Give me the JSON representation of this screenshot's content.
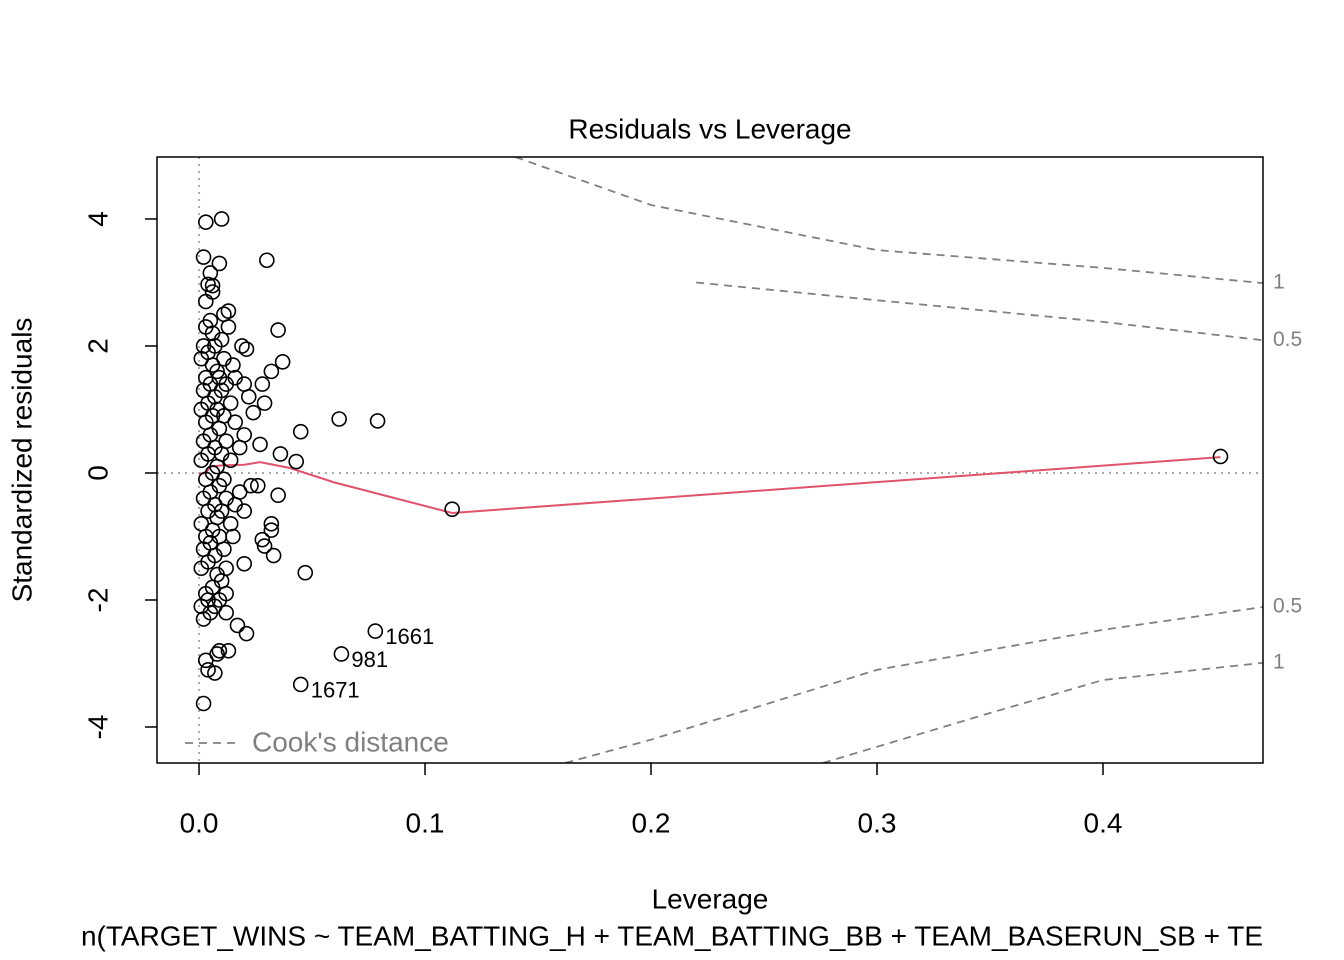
{
  "chart_data": {
    "type": "scatter",
    "title": "Residuals vs Leverage",
    "x_label": "Leverage",
    "y_label": "Standardized residuals",
    "subtitle": "n(TARGET_WINS ~ TEAM_BATTING_H + TEAM_BATTING_BB + TEAM_BASERUN_SB + TE",
    "xlim": [
      -0.0186,
      0.4708
    ],
    "ylim": [
      -4.567,
      4.976
    ],
    "xticks": [
      {
        "value": 0,
        "label": "0.0"
      },
      0.1,
      0.2,
      0.3,
      0.4
    ],
    "yticks": [
      -4,
      -2,
      0,
      2,
      4
    ],
    "series": [
      {
        "color": "#000000",
        "x": [
          0.01,
          0.003,
          0.03,
          0.002,
          0.009,
          0.005,
          0.004,
          0.006,
          0.006,
          0.035,
          0.037,
          0.032,
          0.028,
          0.029,
          0.062,
          0.079,
          0.045,
          0.036,
          0.043,
          0.027,
          0.035,
          0.028,
          0.029,
          0.032,
          0.032,
          0.033,
          0.047,
          0.078,
          0.063,
          0.045,
          0.112,
          0.452,
          0.002,
          0.004,
          0.007,
          0.003,
          0.009,
          0.008,
          0.013,
          0.017,
          0.021,
          0.012,
          0.02,
          0.012,
          0.015,
          0.02,
          0.023,
          0.026,
          0.02,
          0.022,
          0.024,
          0.016,
          0.013,
          0.013,
          0.019,
          0.021,
          0.011,
          0.003,
          0.02,
          0.015,
          0.001,
          0.001,
          0.001,
          0.001,
          0.001,
          0.001,
          0.002,
          0.002,
          0.002,
          0.002,
          0.002,
          0.002,
          0.003,
          0.003,
          0.003,
          0.003,
          0.003,
          0.003,
          0.004,
          0.004,
          0.004,
          0.004,
          0.004,
          0.004,
          0.005,
          0.005,
          0.005,
          0.005,
          0.005,
          0.005,
          0.006,
          0.006,
          0.006,
          0.006,
          0.006,
          0.006,
          0.007,
          0.007,
          0.007,
          0.007,
          0.007,
          0.007,
          0.008,
          0.008,
          0.008,
          0.008,
          0.008,
          0.009,
          0.009,
          0.009,
          0.009,
          0.009,
          0.01,
          0.01,
          0.01,
          0.01,
          0.01,
          0.011,
          0.011,
          0.011,
          0.011,
          0.012,
          0.012,
          0.012,
          0.012,
          0.014,
          0.014,
          0.014,
          0.016,
          0.016,
          0.018,
          0.018
        ],
        "y": [
          4.0,
          3.95,
          3.35,
          3.4,
          3.3,
          3.15,
          2.97,
          2.95,
          2.85,
          2.25,
          1.75,
          1.6,
          1.4,
          1.1,
          0.85,
          0.82,
          0.65,
          0.3,
          0.18,
          0.45,
          -0.35,
          -1.05,
          -1.15,
          -0.8,
          -0.9,
          -1.3,
          -1.57,
          -2.49,
          -2.85,
          -3.33,
          -0.57,
          0.26,
          -3.63,
          -3.1,
          -3.15,
          -2.95,
          -2.8,
          -2.85,
          -2.8,
          -2.4,
          -2.53,
          -2.2,
          -1.43,
          -1.9,
          -1.0,
          -0.6,
          -0.2,
          -0.2,
          0.6,
          1.2,
          0.95,
          1.5,
          2.3,
          2.55,
          2.0,
          1.95,
          2.5,
          2.7,
          1.4,
          1.7,
          -2.1,
          -1.5,
          -0.8,
          0.2,
          1.0,
          1.8,
          -2.3,
          -1.2,
          -0.4,
          0.5,
          1.3,
          2.0,
          -1.9,
          -1.0,
          -0.1,
          0.8,
          1.5,
          2.3,
          -2.0,
          -1.4,
          -0.6,
          0.3,
          1.1,
          1.9,
          -2.2,
          -1.1,
          -0.3,
          0.6,
          1.4,
          2.4,
          -1.8,
          -0.9,
          0.0,
          0.9,
          1.7,
          2.2,
          -2.1,
          -1.3,
          -0.5,
          0.4,
          1.2,
          2.0,
          -1.6,
          -0.7,
          0.1,
          1.0,
          1.6,
          -2.0,
          -1.0,
          -0.2,
          0.7,
          1.5,
          -1.7,
          -0.6,
          0.3,
          1.3,
          2.1,
          -1.2,
          -0.1,
          0.9,
          1.8,
          -1.5,
          -0.4,
          0.5,
          1.4,
          -0.8,
          0.2,
          1.1,
          -0.5,
          0.8,
          -0.3,
          0.4
        ]
      }
    ],
    "smooth": {
      "color": "#DF536B",
      "x": [
        0.0,
        0.003,
        0.005,
        0.01,
        0.02,
        0.027,
        0.04,
        0.06,
        0.112,
        0.452
      ],
      "y": [
        -0.02,
        0.0,
        0.1,
        0.12,
        0.13,
        0.17,
        0.08,
        -0.15,
        -0.63,
        0.25
      ]
    },
    "point_labels": [
      {
        "text": "1661",
        "x": 0.078,
        "y": -2.49
      },
      {
        "text": "981",
        "x": 0.063,
        "y": -2.85
      },
      {
        "text": "1671",
        "x": 0.045,
        "y": -3.33
      }
    ],
    "cook_distance": {
      "name": "Cook's distance",
      "color": "#808080",
      "curves": [
        {
          "level": 1,
          "x": [
            0.14,
            0.2,
            0.3,
            0.4,
            0.4708
          ],
          "y": [
            4.976,
            4.22,
            3.51,
            3.23,
            2.99
          ]
        },
        {
          "level": 0.5,
          "x": [
            0.22,
            0.3,
            0.4,
            0.4708
          ],
          "y": [
            3.0,
            2.72,
            2.38,
            2.09
          ]
        },
        {
          "level": 0.5,
          "x": [
            0.162,
            0.2,
            0.3,
            0.4,
            0.4708
          ],
          "y": [
            -4.567,
            -4.2,
            -3.1,
            -2.47,
            -2.11
          ]
        },
        {
          "level": 1,
          "x": [
            0.276,
            0.35,
            0.4,
            0.4708
          ],
          "y": [
            -4.567,
            -3.78,
            -3.26,
            -2.99
          ]
        }
      ]
    }
  }
}
